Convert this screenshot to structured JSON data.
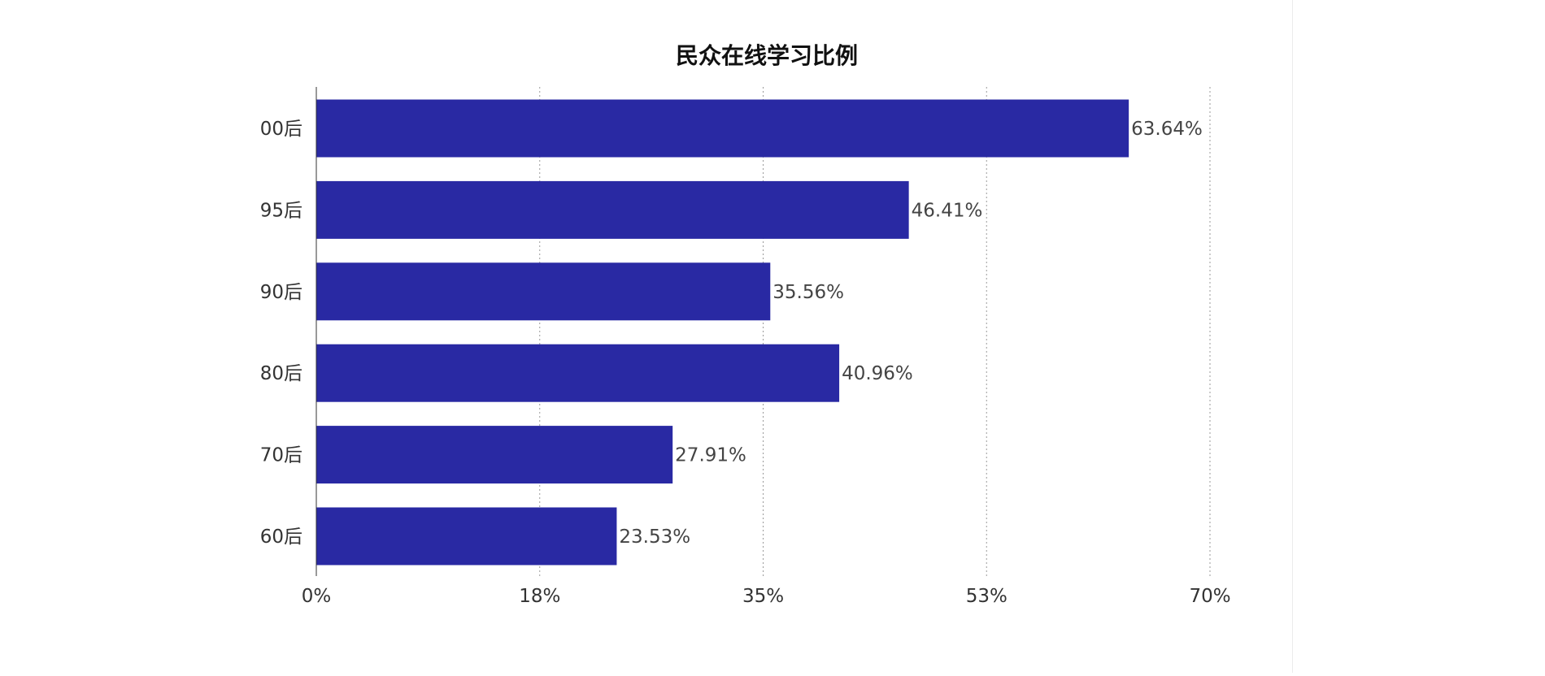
{
  "chart_data": {
    "type": "bar",
    "orientation": "horizontal",
    "title": "民众在线学习比例",
    "categories": [
      "00后",
      "95后",
      "90后",
      "80后",
      "70后",
      "60后"
    ],
    "values": [
      63.64,
      46.41,
      35.56,
      40.96,
      27.91,
      23.53
    ],
    "value_labels": [
      "63.64%",
      "46.41%",
      "35.56%",
      "40.96%",
      "27.91%",
      "23.53%"
    ],
    "xlim": [
      0,
      70
    ],
    "x_ticks": [
      0,
      17.5,
      35,
      52.5,
      70
    ],
    "x_tick_labels": [
      "0%",
      "18%",
      "35%",
      "53%",
      "70%"
    ],
    "xlabel": "",
    "ylabel": "",
    "grid": "vertical dotted",
    "legend": "none",
    "bar_color": "#2929A3"
  }
}
